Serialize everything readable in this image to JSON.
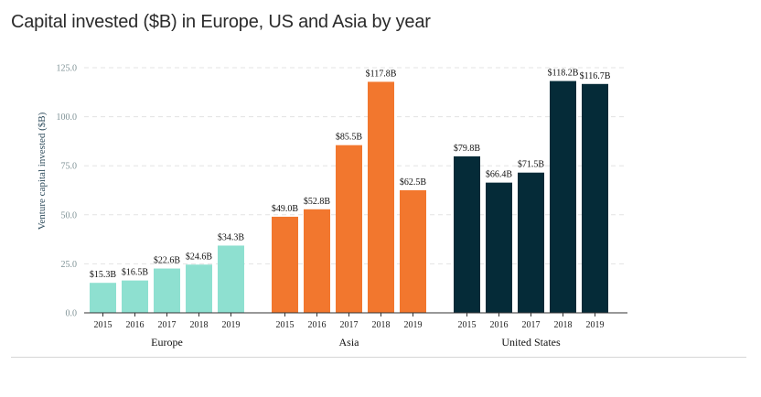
{
  "chart_data": {
    "type": "bar",
    "title": "Capital invested ($B) in Europe, US and Asia by year",
    "ylabel": "Venture capital invested ($B)",
    "xlabel": "",
    "ylim": [
      0,
      125
    ],
    "yticks": [
      "0.0",
      "25.0",
      "50.0",
      "75.0",
      "100.0",
      "125.0"
    ],
    "ytick_values": [
      0,
      25,
      50,
      75,
      100,
      125
    ],
    "grid": true,
    "legend": "none",
    "groups": [
      {
        "name": "Europe",
        "color": "#8ee0d0",
        "categories": [
          "2015",
          "2016",
          "2017",
          "2018",
          "2019"
        ],
        "values": [
          15.3,
          16.5,
          22.6,
          24.6,
          34.3
        ],
        "labels": [
          "$15.3B",
          "$16.5B",
          "$22.6B",
          "$24.6B",
          "$34.3B"
        ]
      },
      {
        "name": "Asia",
        "color": "#f2772e",
        "categories": [
          "2015",
          "2016",
          "2017",
          "2018",
          "2019"
        ],
        "values": [
          49.0,
          52.8,
          85.5,
          117.8,
          62.5
        ],
        "labels": [
          "$49.0B",
          "$52.8B",
          "$85.5B",
          "$117.8B",
          "$62.5B"
        ]
      },
      {
        "name": "United States",
        "color": "#052b38",
        "categories": [
          "2015",
          "2016",
          "2017",
          "2018",
          "2019"
        ],
        "values": [
          79.8,
          66.4,
          71.5,
          118.2,
          116.7
        ],
        "labels": [
          "$79.8B",
          "$66.4B",
          "$71.5B",
          "$118.2B",
          "$116.7B"
        ]
      }
    ]
  }
}
